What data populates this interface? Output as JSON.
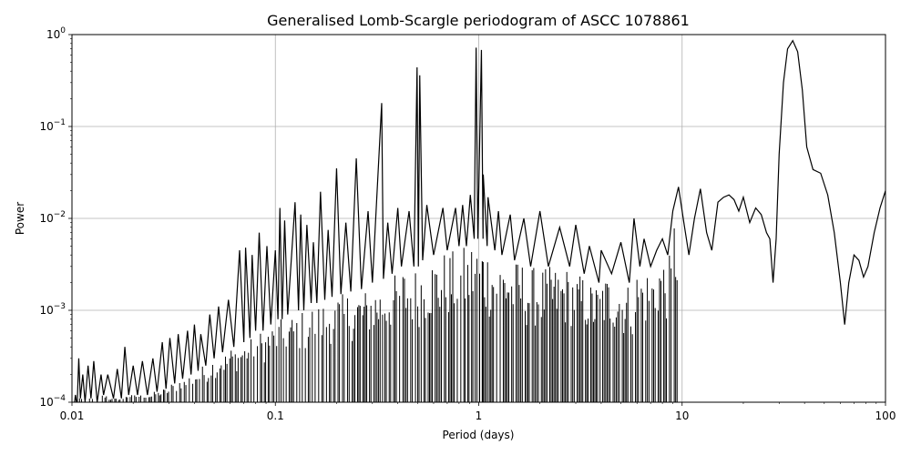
{
  "chart_data": {
    "type": "line",
    "title": "Generalised Lomb-Scargle periodogram of ASCC 1078861",
    "xlabel": "Period (days)",
    "ylabel": "Power",
    "xscale": "log",
    "yscale": "log",
    "xlim": [
      0.01,
      100
    ],
    "ylim": [
      0.0001,
      1
    ],
    "grid": true,
    "line_color": "#000000",
    "x_ticks": [
      {
        "value": 0.01,
        "label": "0.01"
      },
      {
        "value": 0.1,
        "label": "0.1"
      },
      {
        "value": 1,
        "label": "1"
      },
      {
        "value": 10,
        "label": "10"
      },
      {
        "value": 100,
        "label": "100"
      }
    ],
    "y_ticks": [
      {
        "value": 0.0001,
        "base": "10",
        "exp": "−4"
      },
      {
        "value": 0.001,
        "base": "10",
        "exp": "−3"
      },
      {
        "value": 0.01,
        "base": "10",
        "exp": "−2"
      },
      {
        "value": 0.1,
        "base": "10",
        "exp": "−1"
      },
      {
        "value": 1,
        "base": "10",
        "exp": "0"
      }
    ],
    "series": [
      {
        "points": [
          [
            0.0103,
            0.0001
          ],
          [
            0.0104,
            0.00012
          ],
          [
            0.0106,
            9e-05
          ],
          [
            0.0108,
            0.0003
          ],
          [
            0.011,
            0.00011
          ],
          [
            0.0113,
            0.0002
          ],
          [
            0.0116,
            0.0001
          ],
          [
            0.012,
            0.00025
          ],
          [
            0.0124,
            0.00011
          ],
          [
            0.0128,
            0.00028
          ],
          [
            0.0133,
            0.0001
          ],
          [
            0.0139,
            0.0002
          ],
          [
            0.0143,
            0.00012
          ],
          [
            0.015,
            0.0002
          ],
          [
            0.016,
            0.00011
          ],
          [
            0.0167,
            0.00023
          ],
          [
            0.0175,
            0.00011
          ],
          [
            0.0182,
            0.0004
          ],
          [
            0.019,
            0.00012
          ],
          [
            0.02,
            0.00025
          ],
          [
            0.021,
            0.00012
          ],
          [
            0.0222,
            0.00028
          ],
          [
            0.0235,
            0.00012
          ],
          [
            0.025,
            0.0003
          ],
          [
            0.0262,
            0.00013
          ],
          [
            0.0278,
            0.00045
          ],
          [
            0.029,
            0.00014
          ],
          [
            0.0303,
            0.0005
          ],
          [
            0.032,
            0.00016
          ],
          [
            0.0333,
            0.00055
          ],
          [
            0.035,
            0.00018
          ],
          [
            0.037,
            0.0006
          ],
          [
            0.0385,
            0.0002
          ],
          [
            0.04,
            0.0007
          ],
          [
            0.0417,
            0.00022
          ],
          [
            0.043,
            0.00055
          ],
          [
            0.0455,
            0.00025
          ],
          [
            0.0476,
            0.0009
          ],
          [
            0.05,
            0.0003
          ],
          [
            0.0526,
            0.0011
          ],
          [
            0.055,
            0.00035
          ],
          [
            0.0588,
            0.0013
          ],
          [
            0.0625,
            0.0004
          ],
          [
            0.0667,
            0.0045
          ],
          [
            0.07,
            0.00045
          ],
          [
            0.0714,
            0.0048
          ],
          [
            0.075,
            0.0005
          ],
          [
            0.0769,
            0.004
          ],
          [
            0.08,
            0.0006
          ],
          [
            0.0833,
            0.007
          ],
          [
            0.087,
            0.0006
          ],
          [
            0.0909,
            0.005
          ],
          [
            0.095,
            0.0007
          ],
          [
            0.1,
            0.0045
          ],
          [
            0.103,
            0.0008
          ],
          [
            0.1053,
            0.013
          ],
          [
            0.108,
            0.0008
          ],
          [
            0.1111,
            0.0095
          ],
          [
            0.115,
            0.0009
          ],
          [
            0.125,
            0.015
          ],
          [
            0.13,
            0.001
          ],
          [
            0.1333,
            0.011
          ],
          [
            0.138,
            0.001
          ],
          [
            0.1429,
            0.0085
          ],
          [
            0.15,
            0.0012
          ],
          [
            0.1538,
            0.0055
          ],
          [
            0.16,
            0.0012
          ],
          [
            0.1667,
            0.0195
          ],
          [
            0.175,
            0.0013
          ],
          [
            0.1818,
            0.0075
          ],
          [
            0.19,
            0.0014
          ],
          [
            0.2,
            0.035
          ],
          [
            0.21,
            0.0015
          ],
          [
            0.2222,
            0.009
          ],
          [
            0.235,
            0.0016
          ],
          [
            0.25,
            0.045
          ],
          [
            0.265,
            0.0017
          ],
          [
            0.2857,
            0.012
          ],
          [
            0.3,
            0.002
          ],
          [
            0.3333,
            0.18
          ],
          [
            0.34,
            0.0022
          ],
          [
            0.3571,
            0.009
          ],
          [
            0.375,
            0.0025
          ],
          [
            0.4,
            0.013
          ],
          [
            0.4167,
            0.003
          ],
          [
            0.4545,
            0.012
          ],
          [
            0.48,
            0.003
          ],
          [
            0.4975,
            0.44
          ],
          [
            0.505,
            0.003
          ],
          [
            0.5128,
            0.36
          ],
          [
            0.53,
            0.0035
          ],
          [
            0.5556,
            0.014
          ],
          [
            0.6,
            0.004
          ],
          [
            0.6667,
            0.013
          ],
          [
            0.7,
            0.0045
          ],
          [
            0.7692,
            0.013
          ],
          [
            0.8,
            0.005
          ],
          [
            0.8333,
            0.014
          ],
          [
            0.87,
            0.005
          ],
          [
            0.9091,
            0.018
          ],
          [
            0.95,
            0.006
          ],
          [
            0.9709,
            0.72
          ],
          [
            0.99,
            0.006
          ],
          [
            1.0309,
            0.68
          ],
          [
            1.05,
            0.006
          ],
          [
            1.0526,
            0.03
          ],
          [
            1.1,
            0.005
          ],
          [
            1.1111,
            0.017
          ],
          [
            1.2,
            0.0045
          ],
          [
            1.25,
            0.012
          ],
          [
            1.3,
            0.004
          ],
          [
            1.4286,
            0.011
          ],
          [
            1.5,
            0.0035
          ],
          [
            1.6667,
            0.01
          ],
          [
            1.8,
            0.003
          ],
          [
            2.0,
            0.012
          ],
          [
            2.2,
            0.003
          ],
          [
            2.5,
            0.008
          ],
          [
            2.8,
            0.003
          ],
          [
            3.0,
            0.0085
          ],
          [
            3.3,
            0.0025
          ],
          [
            3.5,
            0.005
          ],
          [
            3.9,
            0.002
          ],
          [
            4.0,
            0.0045
          ],
          [
            4.5,
            0.0025
          ],
          [
            5.0,
            0.0055
          ],
          [
            5.5,
            0.002
          ],
          [
            5.8,
            0.01
          ],
          [
            6.2,
            0.003
          ],
          [
            6.5,
            0.006
          ],
          [
            7.0,
            0.003
          ],
          [
            7.5,
            0.0045
          ],
          [
            8.0,
            0.006
          ],
          [
            8.5,
            0.004
          ],
          [
            9.0,
            0.012
          ],
          [
            9.6,
            0.022
          ],
          [
            10.2,
            0.009
          ],
          [
            10.8,
            0.004
          ],
          [
            11.5,
            0.01
          ],
          [
            12.3,
            0.021
          ],
          [
            13.2,
            0.007
          ],
          [
            14.0,
            0.0045
          ],
          [
            15.0,
            0.015
          ],
          [
            16.0,
            0.017
          ],
          [
            17.0,
            0.018
          ],
          [
            18.0,
            0.016
          ],
          [
            19.0,
            0.012
          ],
          [
            20.0,
            0.017
          ],
          [
            21.5,
            0.009
          ],
          [
            23.0,
            0.013
          ],
          [
            24.5,
            0.011
          ],
          [
            26.0,
            0.007
          ],
          [
            27.0,
            0.006
          ],
          [
            28.0,
            0.002
          ],
          [
            29.0,
            0.006
          ],
          [
            30.0,
            0.05
          ],
          [
            31.5,
            0.3
          ],
          [
            33.0,
            0.7
          ],
          [
            35.0,
            0.86
          ],
          [
            37.0,
            0.65
          ],
          [
            39.0,
            0.25
          ],
          [
            41.0,
            0.06
          ],
          [
            44.0,
            0.034
          ],
          [
            48.0,
            0.031
          ],
          [
            52.0,
            0.018
          ],
          [
            56.0,
            0.007
          ],
          [
            60.0,
            0.002
          ],
          [
            63.0,
            0.0007
          ],
          [
            66.0,
            0.002
          ],
          [
            70.0,
            0.004
          ],
          [
            74.0,
            0.0035
          ],
          [
            78.0,
            0.0023
          ],
          [
            82.0,
            0.003
          ],
          [
            88.0,
            0.007
          ],
          [
            94.0,
            0.013
          ],
          [
            100.0,
            0.02
          ]
        ]
      }
    ]
  }
}
